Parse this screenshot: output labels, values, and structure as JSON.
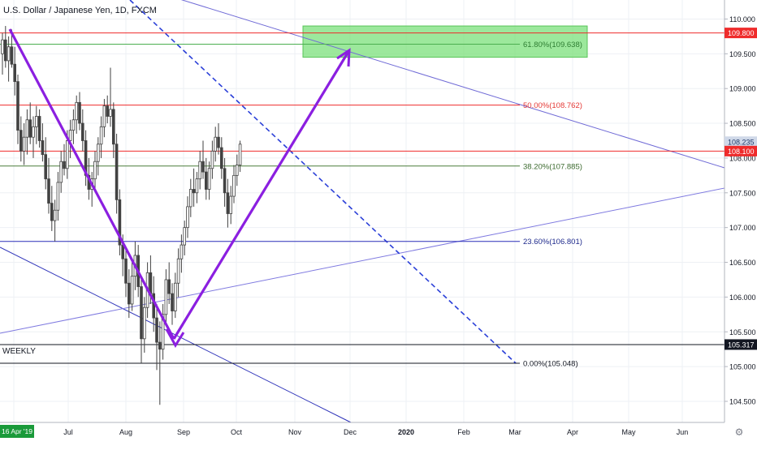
{
  "title": "U.S. Dollar / Japanese Yen, 1D, FXCM",
  "chart_data": {
    "type": "candlestick",
    "symbol": "U.S. Dollar / Japanese Yen",
    "timeframe": "1D",
    "source": "FXCM",
    "y_ticks": [
      "104.500",
      "105.000",
      "105.500",
      "106.000",
      "106.500",
      "107.000",
      "107.500",
      "108.000",
      "108.500",
      "109.000",
      "109.500",
      "110.000"
    ],
    "x_ticks": [
      {
        "label": "16 Apr '19",
        "highlight": true
      },
      {
        "label": "Jul"
      },
      {
        "label": "Aug"
      },
      {
        "label": "Sep"
      },
      {
        "label": "Oct"
      },
      {
        "label": "Nov"
      },
      {
        "label": "Dec"
      },
      {
        "label": "2020",
        "bold": true
      },
      {
        "label": "Feb"
      },
      {
        "label": "Mar"
      },
      {
        "label": "Apr"
      },
      {
        "label": "May"
      },
      {
        "label": "Jun"
      }
    ],
    "price_tags": [
      {
        "value": 109.8,
        "label": "109.800",
        "color": "#ef2b2b"
      },
      {
        "value": 108.235,
        "label": "108.235",
        "color": "#cfd8e8",
        "text": "#233a6b"
      },
      {
        "value": 108.1,
        "label": "108.100",
        "color": "#ef2b2b"
      },
      {
        "value": 105.317,
        "label": "105.317",
        "color": "#131722"
      }
    ],
    "fibonacci": [
      {
        "ratio": "61.80%",
        "price": 109.638,
        "label": "61.80%(109.638)",
        "color": "#4caf50",
        "text": "#2e7d32"
      },
      {
        "ratio": "50.00%",
        "price": 108.762,
        "label": "50.00%(108.762)",
        "color": "#ef2b2b",
        "text": "#e53935"
      },
      {
        "ratio": "38.20%",
        "price": 107.885,
        "label": "38.20%(107.885)",
        "color": "#4a7d3a",
        "text": "#3d6b30"
      },
      {
        "ratio": "23.60%",
        "price": 106.801,
        "label": "23.60%(106.801)",
        "color": "#2a2fb8",
        "text": "#1e2a8c"
      },
      {
        "ratio": "0.00%",
        "price": 105.048,
        "label": "0.00%(105.048)",
        "color": "#131722",
        "text": "#131722"
      }
    ],
    "horizontal_lines": [
      {
        "price": 109.8,
        "color": "#ef2b2b"
      },
      {
        "price": 108.1,
        "color": "#ef2b2b"
      },
      {
        "price": 105.317,
        "color": "#131722",
        "label": "WEEKLY"
      }
    ],
    "target_zone": {
      "price_top": 109.9,
      "price_bottom": 109.45,
      "color": "#7be07b"
    },
    "candles": [
      [
        109.5,
        109.8,
        109.2,
        109.7
      ],
      [
        109.7,
        109.9,
        109.3,
        109.4
      ],
      [
        109.4,
        109.75,
        109.1,
        109.6
      ],
      [
        109.6,
        109.85,
        109.3,
        109.35
      ],
      [
        109.35,
        109.6,
        108.9,
        109.1
      ],
      [
        109.1,
        109.2,
        108.2,
        108.4
      ],
      [
        108.4,
        108.6,
        107.95,
        108.1
      ],
      [
        108.1,
        108.5,
        107.9,
        108.3
      ],
      [
        108.3,
        108.7,
        108.05,
        108.55
      ],
      [
        108.55,
        108.8,
        108.2,
        108.3
      ],
      [
        108.3,
        108.6,
        108.0,
        108.45
      ],
      [
        108.45,
        108.75,
        108.2,
        108.6
      ],
      [
        108.6,
        108.7,
        108.15,
        108.25
      ],
      [
        108.25,
        108.5,
        107.95,
        108.05
      ],
      [
        108.05,
        108.3,
        107.55,
        107.7
      ],
      [
        107.7,
        108.0,
        107.2,
        107.35
      ],
      [
        107.35,
        107.6,
        106.95,
        107.1
      ],
      [
        107.1,
        107.4,
        106.8,
        107.25
      ],
      [
        107.25,
        107.8,
        107.1,
        107.65
      ],
      [
        107.65,
        108.1,
        107.5,
        107.95
      ],
      [
        107.95,
        108.2,
        107.75,
        107.85
      ],
      [
        107.85,
        108.4,
        107.7,
        108.25
      ],
      [
        108.25,
        108.55,
        108.0,
        108.4
      ],
      [
        108.4,
        108.7,
        108.2,
        108.55
      ],
      [
        108.55,
        108.9,
        108.35,
        108.8
      ],
      [
        108.8,
        108.95,
        108.4,
        108.5
      ],
      [
        108.5,
        108.7,
        108.1,
        108.25
      ],
      [
        108.25,
        108.4,
        107.6,
        107.75
      ],
      [
        107.75,
        108.0,
        107.4,
        107.55
      ],
      [
        107.55,
        107.8,
        107.3,
        107.7
      ],
      [
        107.7,
        108.1,
        107.55,
        107.95
      ],
      [
        107.95,
        108.3,
        107.75,
        108.2
      ],
      [
        108.2,
        108.6,
        108.0,
        108.45
      ],
      [
        108.45,
        108.85,
        108.3,
        108.75
      ],
      [
        108.75,
        108.9,
        108.5,
        108.6
      ],
      [
        108.6,
        109.3,
        108.45,
        108.7
      ],
      [
        108.7,
        108.8,
        108.0,
        108.2
      ],
      [
        108.2,
        108.35,
        107.2,
        107.4
      ],
      [
        107.4,
        107.55,
        106.6,
        106.75
      ],
      [
        106.75,
        106.9,
        106.3,
        106.55
      ],
      [
        106.55,
        106.7,
        106.0,
        106.2
      ],
      [
        106.2,
        106.4,
        105.7,
        105.9
      ],
      [
        105.9,
        106.5,
        105.8,
        106.3
      ],
      [
        106.3,
        106.8,
        106.1,
        106.6
      ],
      [
        106.6,
        106.75,
        106.0,
        106.15
      ],
      [
        106.15,
        106.3,
        105.05,
        105.4
      ],
      [
        105.4,
        106.0,
        105.2,
        105.85
      ],
      [
        105.85,
        106.5,
        105.7,
        106.35
      ],
      [
        106.35,
        106.6,
        105.9,
        106.05
      ],
      [
        106.05,
        106.3,
        105.5,
        105.7
      ],
      [
        105.7,
        105.9,
        104.95,
        105.35
      ],
      [
        105.35,
        105.65,
        104.45,
        105.25
      ],
      [
        105.25,
        105.9,
        105.1,
        105.75
      ],
      [
        105.75,
        106.4,
        105.6,
        106.25
      ],
      [
        106.25,
        106.5,
        105.9,
        106.05
      ],
      [
        106.05,
        106.2,
        105.6,
        105.8
      ],
      [
        105.8,
        106.35,
        105.7,
        106.2
      ],
      [
        106.2,
        106.7,
        106.0,
        106.55
      ],
      [
        106.55,
        106.9,
        106.35,
        106.75
      ],
      [
        106.75,
        107.1,
        106.6,
        107.0
      ],
      [
        107.0,
        107.45,
        106.85,
        107.3
      ],
      [
        107.3,
        107.7,
        107.15,
        107.55
      ],
      [
        107.55,
        107.85,
        107.3,
        107.5
      ],
      [
        107.5,
        107.8,
        107.35,
        107.7
      ],
      [
        107.7,
        108.1,
        107.55,
        107.95
      ],
      [
        107.95,
        108.25,
        107.7,
        107.8
      ],
      [
        107.8,
        108.0,
        107.4,
        107.55
      ],
      [
        107.55,
        107.95,
        107.4,
        107.85
      ],
      [
        107.85,
        108.25,
        107.7,
        108.1
      ],
      [
        108.1,
        108.45,
        107.95,
        108.3
      ],
      [
        108.3,
        108.5,
        108.05,
        108.15
      ],
      [
        108.15,
        108.3,
        107.7,
        107.85
      ],
      [
        107.85,
        108.0,
        107.3,
        107.5
      ],
      [
        107.5,
        107.7,
        107.0,
        107.2
      ],
      [
        107.2,
        107.6,
        107.05,
        107.45
      ],
      [
        107.45,
        107.9,
        107.35,
        107.75
      ],
      [
        107.75,
        108.05,
        107.6,
        107.9
      ],
      [
        107.9,
        108.25,
        107.8,
        108.2
      ]
    ]
  }
}
